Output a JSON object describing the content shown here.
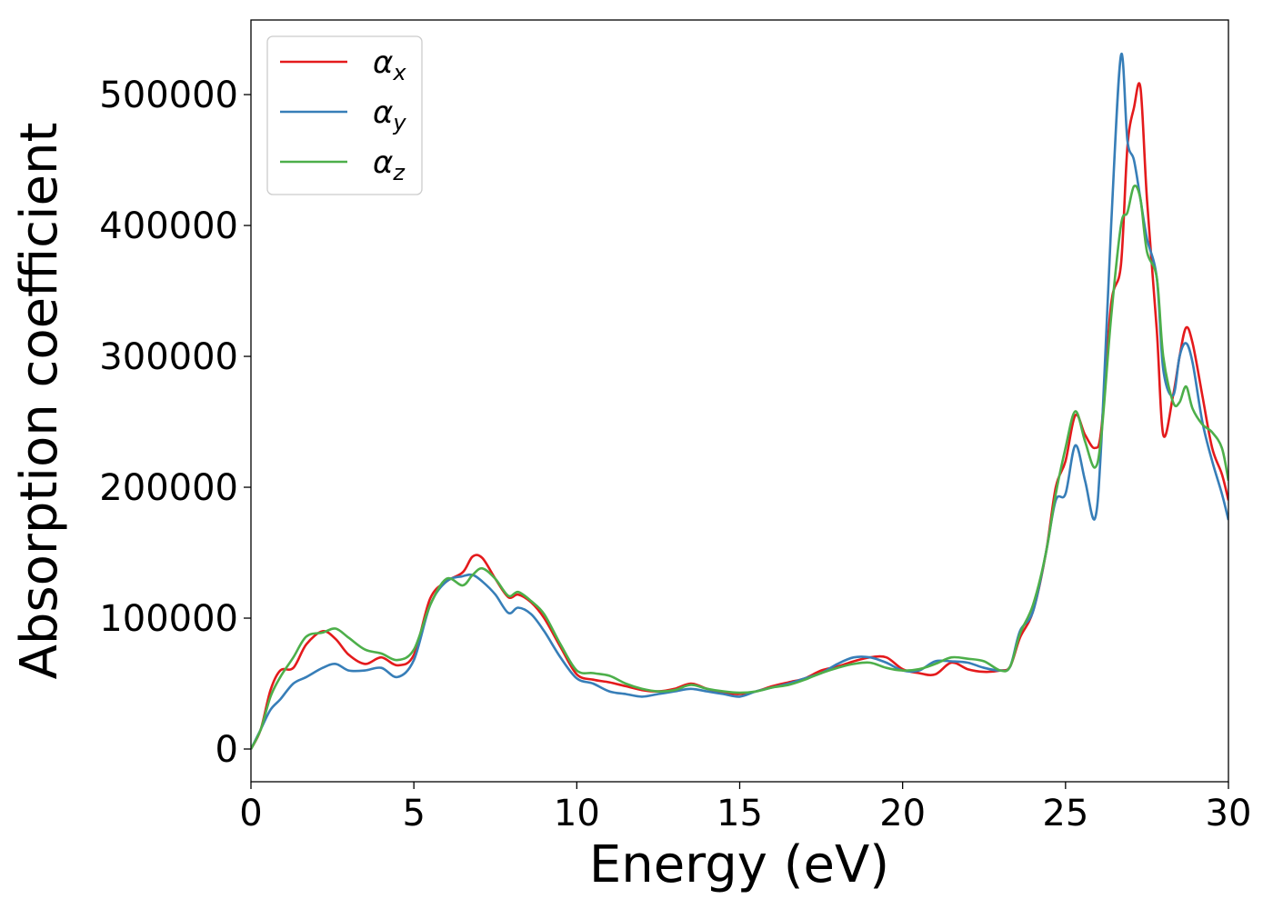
{
  "chart_data": {
    "type": "line",
    "title": "",
    "xlabel": "Energy (eV)",
    "ylabel": "Absorption coefficient",
    "xlim": [
      0,
      30
    ],
    "ylim": [
      -25000,
      557000
    ],
    "xticks": [
      0,
      5,
      10,
      15,
      20,
      25,
      30
    ],
    "yticks": [
      0,
      100000,
      200000,
      300000,
      400000,
      500000
    ],
    "xtick_labels": [
      "0",
      "5",
      "10",
      "15",
      "20",
      "25",
      "30"
    ],
    "ytick_labels": [
      "0",
      "100000",
      "200000",
      "300000",
      "400000",
      "500000"
    ],
    "grid": false,
    "legend": "top-left",
    "series": [
      {
        "name": "α",
        "subscript": "x",
        "color": "#e41a1c",
        "x": [
          0,
          0.3,
          0.6,
          0.9,
          1.3,
          1.7,
          2.2,
          2.6,
          3.0,
          3.5,
          4.0,
          4.5,
          5.0,
          5.5,
          6.0,
          6.5,
          6.8,
          7.1,
          7.5,
          7.9,
          8.2,
          8.6,
          9.0,
          9.5,
          10.0,
          10.5,
          11.0,
          11.5,
          12.0,
          12.5,
          13.0,
          13.5,
          14.0,
          14.5,
          15.0,
          15.5,
          16.0,
          16.5,
          17.0,
          17.5,
          18.0,
          18.5,
          19.0,
          19.5,
          20.0,
          20.5,
          21.0,
          21.5,
          22.0,
          22.5,
          23.0,
          23.3,
          23.6,
          24.0,
          24.4,
          24.7,
          25.0,
          25.3,
          25.6,
          25.9,
          26.1,
          26.4,
          26.7,
          26.9,
          27.1,
          27.3,
          27.5,
          27.8,
          28.0,
          28.3,
          28.5,
          28.7,
          28.9,
          29.2,
          29.5,
          29.8,
          30.0
        ],
        "y": [
          0,
          15000,
          45000,
          60000,
          62000,
          80000,
          90000,
          84000,
          72000,
          65000,
          70000,
          64000,
          72000,
          115000,
          128000,
          135000,
          147000,
          146000,
          130000,
          116000,
          118000,
          112000,
          100000,
          78000,
          57000,
          53000,
          51000,
          48000,
          45000,
          44000,
          46000,
          50000,
          46000,
          43000,
          42000,
          44000,
          48000,
          51000,
          54000,
          60000,
          63000,
          67000,
          70000,
          70000,
          61000,
          58000,
          57000,
          66000,
          61000,
          59000,
          60000,
          63000,
          85000,
          105000,
          150000,
          200000,
          220000,
          255000,
          240000,
          230000,
          245000,
          340000,
          370000,
          460000,
          490000,
          505000,
          420000,
          320000,
          240000,
          270000,
          300000,
          322000,
          310000,
          270000,
          230000,
          210000,
          190000
        ]
      },
      {
        "name": "α",
        "subscript": "y",
        "color": "#377eb8",
        "x": [
          0,
          0.3,
          0.6,
          0.9,
          1.3,
          1.7,
          2.2,
          2.6,
          3.0,
          3.5,
          4.0,
          4.5,
          5.0,
          5.5,
          6.0,
          6.5,
          6.8,
          7.1,
          7.5,
          7.9,
          8.2,
          8.6,
          9.0,
          9.5,
          10.0,
          10.5,
          11.0,
          11.5,
          12.0,
          12.5,
          13.0,
          13.5,
          14.0,
          14.5,
          15.0,
          15.5,
          16.0,
          16.5,
          17.0,
          17.5,
          18.0,
          18.5,
          19.0,
          19.5,
          20.0,
          20.5,
          21.0,
          21.5,
          22.0,
          22.5,
          23.0,
          23.3,
          23.6,
          24.0,
          24.4,
          24.7,
          25.0,
          25.3,
          25.6,
          25.9,
          26.1,
          26.4,
          26.7,
          26.9,
          27.1,
          27.3,
          27.5,
          27.8,
          28.0,
          28.3,
          28.5,
          28.7,
          28.9,
          29.2,
          29.5,
          29.8,
          30.0
        ],
        "y": [
          0,
          15000,
          30000,
          38000,
          50000,
          55000,
          62000,
          65000,
          60000,
          60000,
          62000,
          55000,
          68000,
          110000,
          128000,
          132000,
          133000,
          128000,
          118000,
          104000,
          108000,
          103000,
          90000,
          70000,
          54000,
          50000,
          44000,
          42000,
          40000,
          42000,
          44000,
          46000,
          44000,
          42000,
          40000,
          44000,
          47000,
          50000,
          54000,
          58000,
          65000,
          70000,
          70000,
          66000,
          60000,
          60000,
          67000,
          67000,
          66000,
          62000,
          60000,
          63000,
          90000,
          105000,
          150000,
          190000,
          195000,
          232000,
          205000,
          176000,
          235000,
          400000,
          530000,
          465000,
          450000,
          420000,
          390000,
          360000,
          290000,
          270000,
          300000,
          310000,
          295000,
          250000,
          220000,
          195000,
          175000
        ]
      },
      {
        "name": "α",
        "subscript": "z",
        "color": "#4daf4a",
        "x": [
          0,
          0.3,
          0.6,
          0.9,
          1.3,
          1.7,
          2.2,
          2.6,
          3.0,
          3.5,
          4.0,
          4.5,
          5.0,
          5.5,
          6.0,
          6.5,
          6.8,
          7.1,
          7.5,
          7.9,
          8.2,
          8.6,
          9.0,
          9.5,
          10.0,
          10.5,
          11.0,
          11.5,
          12.0,
          12.5,
          13.0,
          13.5,
          14.0,
          14.5,
          15.0,
          15.5,
          16.0,
          16.5,
          17.0,
          17.5,
          18.0,
          18.5,
          19.0,
          19.5,
          20.0,
          20.5,
          21.0,
          21.5,
          22.0,
          22.5,
          23.0,
          23.3,
          23.6,
          24.0,
          24.4,
          24.7,
          25.0,
          25.3,
          25.6,
          25.9,
          26.1,
          26.4,
          26.7,
          26.9,
          27.1,
          27.3,
          27.5,
          27.8,
          28.0,
          28.3,
          28.5,
          28.7,
          28.9,
          29.2,
          29.5,
          29.8,
          30.0
        ],
        "y": [
          0,
          15000,
          40000,
          55000,
          70000,
          86000,
          89000,
          92000,
          85000,
          76000,
          73000,
          68000,
          76000,
          110000,
          130000,
          125000,
          133000,
          138000,
          130000,
          117000,
          120000,
          113000,
          103000,
          80000,
          60000,
          58000,
          56000,
          50000,
          46000,
          44000,
          45000,
          49000,
          46000,
          44000,
          43000,
          44000,
          47000,
          49000,
          53000,
          58000,
          62000,
          65000,
          66000,
          62000,
          60000,
          61000,
          65000,
          70000,
          69000,
          67000,
          60000,
          63000,
          88000,
          110000,
          150000,
          195000,
          230000,
          258000,
          235000,
          215000,
          240000,
          330000,
          400000,
          410000,
          430000,
          420000,
          380000,
          360000,
          300000,
          265000,
          265000,
          277000,
          260000,
          248000,
          242000,
          230000,
          205000
        ]
      }
    ]
  }
}
